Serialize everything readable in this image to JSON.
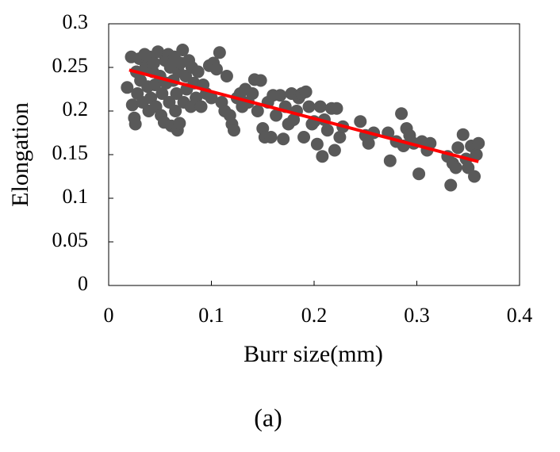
{
  "chart_data": {
    "type": "scatter",
    "x_label": "Burr size(mm)",
    "y_label": "Elongation",
    "caption": "(a)",
    "xlim": [
      0,
      0.4
    ],
    "xticks": [
      0,
      0.1,
      0.2,
      0.3,
      0.4
    ],
    "ylim": [
      0,
      0.3
    ],
    "yticks": [
      0,
      0.05,
      0.1,
      0.15,
      0.2,
      0.25,
      0.3
    ],
    "series": [
      {
        "color": "#595959",
        "x": [
          0.018,
          0.022,
          0.023,
          0.025,
          0.026,
          0.027,
          0.028,
          0.03,
          0.031,
          0.033,
          0.035,
          0.036,
          0.038,
          0.039,
          0.04,
          0.041,
          0.043,
          0.044,
          0.045,
          0.046,
          0.048,
          0.05,
          0.051,
          0.052,
          0.054,
          0.055,
          0.056,
          0.058,
          0.059,
          0.06,
          0.061,
          0.063,
          0.064,
          0.065,
          0.066,
          0.067,
          0.068,
          0.069,
          0.07,
          0.072,
          0.073,
          0.075,
          0.076,
          0.078,
          0.08,
          0.081,
          0.083,
          0.085,
          0.087,
          0.09,
          0.092,
          0.095,
          0.098,
          0.1,
          0.102,
          0.105,
          0.108,
          0.11,
          0.113,
          0.115,
          0.118,
          0.12,
          0.122,
          0.125,
          0.128,
          0.13,
          0.133,
          0.136,
          0.14,
          0.142,
          0.145,
          0.148,
          0.15,
          0.152,
          0.155,
          0.158,
          0.16,
          0.163,
          0.167,
          0.17,
          0.172,
          0.175,
          0.178,
          0.18,
          0.183,
          0.185,
          0.188,
          0.19,
          0.192,
          0.195,
          0.198,
          0.2,
          0.203,
          0.206,
          0.208,
          0.21,
          0.213,
          0.217,
          0.22,
          0.222,
          0.225,
          0.228,
          0.245,
          0.25,
          0.253,
          0.258,
          0.272,
          0.274,
          0.28,
          0.285,
          0.287,
          0.29,
          0.293,
          0.297,
          0.302,
          0.305,
          0.31,
          0.313,
          0.33,
          0.333,
          0.335,
          0.338,
          0.34,
          0.345,
          0.348,
          0.35,
          0.353,
          0.356,
          0.358,
          0.36
        ],
        "values": [
          0.227,
          0.262,
          0.207,
          0.192,
          0.185,
          0.245,
          0.22,
          0.26,
          0.235,
          0.21,
          0.265,
          0.25,
          0.228,
          0.2,
          0.262,
          0.215,
          0.245,
          0.255,
          0.23,
          0.205,
          0.268,
          0.24,
          0.195,
          0.22,
          0.187,
          0.258,
          0.232,
          0.265,
          0.21,
          0.25,
          0.183,
          0.235,
          0.262,
          0.2,
          0.22,
          0.178,
          0.245,
          0.186,
          0.255,
          0.27,
          0.21,
          0.24,
          0.225,
          0.258,
          0.205,
          0.25,
          0.232,
          0.215,
          0.245,
          0.205,
          0.23,
          0.22,
          0.252,
          0.215,
          0.255,
          0.248,
          0.267,
          0.21,
          0.2,
          0.24,
          0.195,
          0.185,
          0.178,
          0.215,
          0.22,
          0.205,
          0.225,
          0.21,
          0.22,
          0.236,
          0.2,
          0.235,
          0.18,
          0.17,
          0.21,
          0.17,
          0.218,
          0.195,
          0.218,
          0.168,
          0.205,
          0.185,
          0.22,
          0.19,
          0.2,
          0.215,
          0.22,
          0.17,
          0.222,
          0.205,
          0.185,
          0.188,
          0.162,
          0.205,
          0.148,
          0.19,
          0.178,
          0.203,
          0.155,
          0.203,
          0.17,
          0.182,
          0.188,
          0.172,
          0.163,
          0.175,
          0.175,
          0.143,
          0.165,
          0.197,
          0.16,
          0.18,
          0.172,
          0.163,
          0.128,
          0.165,
          0.155,
          0.163,
          0.148,
          0.115,
          0.14,
          0.135,
          0.158,
          0.173,
          0.145,
          0.135,
          0.16,
          0.125,
          0.15,
          0.163
        ]
      }
    ],
    "trendline": {
      "color": "#ff0000",
      "x": [
        0.02,
        0.36
      ],
      "values": [
        0.247,
        0.142
      ]
    }
  }
}
